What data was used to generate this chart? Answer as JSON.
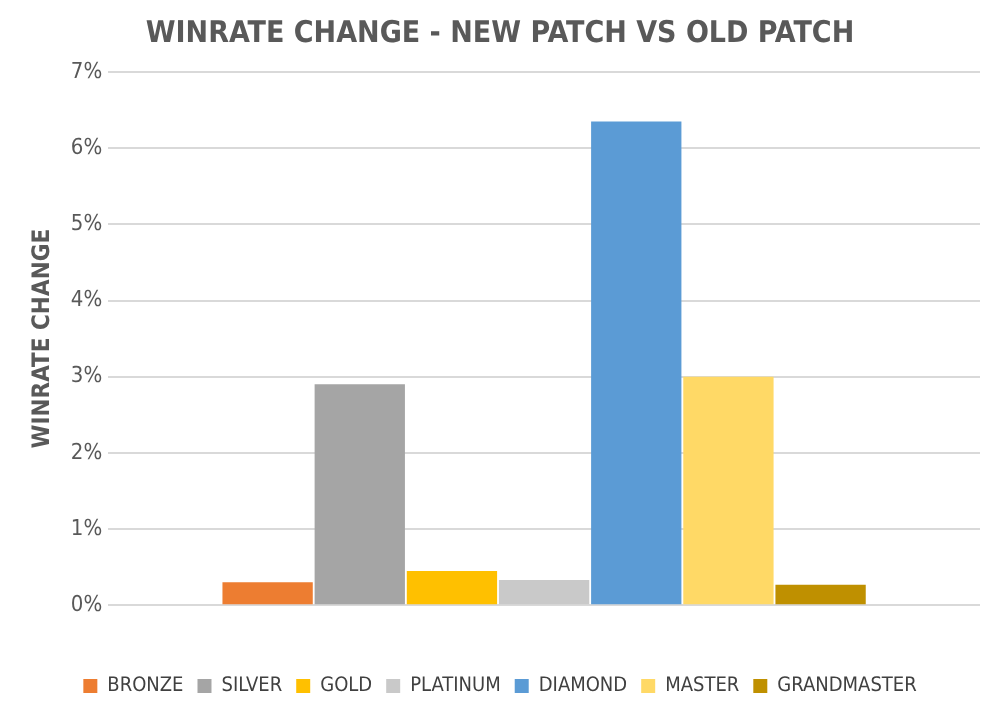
{
  "chart_data": {
    "type": "bar",
    "title": "WINRATE CHANGE - NEW PATCH VS OLD PATCH",
    "ylabel": "WINRATE CHANGE",
    "categories": [
      null
    ],
    "series": [
      {
        "name": "BRONZE",
        "color": "#ed7d31",
        "values": [
          0.3
        ]
      },
      {
        "name": "SILVER",
        "color": "#a5a5a5",
        "values": [
          2.9
        ]
      },
      {
        "name": "GOLD",
        "color": "#ffc000",
        "values": [
          0.45
        ]
      },
      {
        "name": "PLATINUM",
        "color": "#c9c9c9",
        "values": [
          0.33
        ]
      },
      {
        "name": "DIAMOND",
        "color": "#5b9bd5",
        "values": [
          6.35
        ]
      },
      {
        "name": "MASTER",
        "color": "#ffd966",
        "values": [
          3.0
        ]
      },
      {
        "name": "GRANDMASTER",
        "color": "#bf9000",
        "values": [
          0.27
        ]
      }
    ],
    "ylim": [
      0,
      7
    ],
    "yticks": [
      {
        "value": 0,
        "label": "0%"
      },
      {
        "value": 1,
        "label": "1%"
      },
      {
        "value": 2,
        "label": "2%"
      },
      {
        "value": 3,
        "label": "3%"
      },
      {
        "value": 4,
        "label": "4%"
      },
      {
        "value": 5,
        "label": "5%"
      },
      {
        "value": 6,
        "label": "6%"
      },
      {
        "value": 7,
        "label": "7%"
      }
    ],
    "grid": "y",
    "legend": "bottom"
  }
}
